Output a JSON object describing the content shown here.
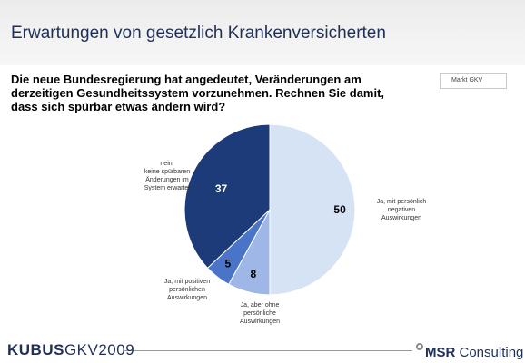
{
  "slide": {
    "title": "Erwartungen von gesetzlich Krankenversicherten",
    "question": "Die neue Bundesregierung hat angedeutet, Veränderungen am derzeitigen Gesundheitssystem vorzunehmen. Rechnen Sie damit, dass sich spürbar etwas ändern wird?",
    "tag": "Markt GKV"
  },
  "footer": {
    "brand_bold": "KUBUS",
    "brand_light": "GKV2009",
    "company_bold": "MSR",
    "company_light": " Consulting"
  },
  "chart_data": {
    "type": "pie",
    "start_angle": "12 o'clock",
    "direction": "clockwise",
    "slices": [
      {
        "label": [
          "Ja, mit persönlich",
          "negativen",
          "Auswirkungen"
        ],
        "value": 50,
        "color": "#d6e3f4",
        "value_color": "#000000"
      },
      {
        "label": [
          "Ja, aber ohne",
          "persönliche",
          "Auswirkungen"
        ],
        "value": 8,
        "color": "#9fb7e6",
        "value_color": "#000000"
      },
      {
        "label": [
          "Ja, mit positiven",
          "persönlichen",
          "Auswirkungen"
        ],
        "value": 5,
        "color": "#4a74c8",
        "value_color": "#000000"
      },
      {
        "label": [
          "nein,",
          "keine spürbaren",
          "Änderungen im",
          "System erwartet"
        ],
        "value": 37,
        "color": "#1c3b78",
        "value_color": "#ffffff"
      }
    ]
  }
}
